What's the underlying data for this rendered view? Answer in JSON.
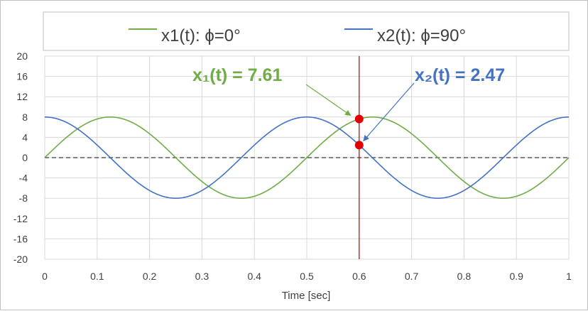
{
  "chart_data": {
    "type": "line",
    "xlabel": "Time [sec]",
    "xlim": [
      0,
      1
    ],
    "ylim": [
      -20,
      20
    ],
    "x_ticks": [
      "0",
      "0.1",
      "0.2",
      "0.3",
      "0.4",
      "0.5",
      "0.6",
      "0.7",
      "0.8",
      "0.9",
      "1"
    ],
    "y_ticks": [
      "20",
      "16",
      "12",
      "8",
      "4",
      "0",
      "-4",
      "-8",
      "-12",
      "-16",
      "-20"
    ],
    "grid": true,
    "legend_position": "top",
    "series": [
      {
        "name": "x1(t): ϕ=0°",
        "amplitude": 8,
        "period": 0.5,
        "phase_deg": 0,
        "color": "#70ad47"
      },
      {
        "name": "x2(t): ϕ=90°",
        "amplitude": 8,
        "period": 0.5,
        "phase_deg": 90,
        "color": "#4472c4"
      }
    ],
    "zero_line": {
      "y": 0,
      "style": "dashed",
      "color": "#595959"
    },
    "marker_line": {
      "x": 0.6,
      "color": "#c00000"
    },
    "points": [
      {
        "x": 0.6,
        "y": 7.61,
        "color": "#e00000"
      },
      {
        "x": 0.6,
        "y": 2.47,
        "color": "#e00000"
      }
    ],
    "annotations": [
      {
        "text": "x₁(t)  =  7.61",
        "color": "#70ad47",
        "target_x": 0.6,
        "target_y": 7.61
      },
      {
        "text": "x₂(t)  =  2.47",
        "color": "#4472c4",
        "target_x": 0.6,
        "target_y": 2.47
      }
    ]
  }
}
